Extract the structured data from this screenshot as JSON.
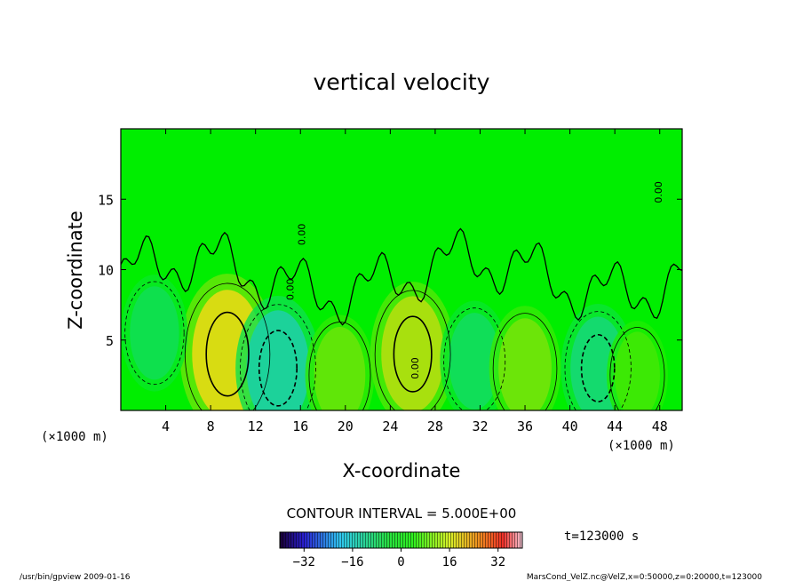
{
  "chart_data": {
    "type": "heatmap",
    "title": "vertical velocity",
    "xlabel": "X-coordinate",
    "ylabel": "Z-coordinate",
    "x_unit_left": "(×1000 m)",
    "x_unit_right": "(×1000 m)",
    "xlim": [
      0,
      50
    ],
    "ylim": [
      0,
      20
    ],
    "x_ticks": [
      4,
      8,
      12,
      16,
      20,
      24,
      28,
      32,
      36,
      40,
      44,
      48
    ],
    "y_ticks": [
      5,
      10,
      15
    ],
    "contour_interval_text": "CONTOUR INTERVAL = 5.000E+00",
    "time_text": "t=123000 s",
    "contour_labels": [
      {
        "text": "0.00",
        "x": 15.4,
        "z": 8.6
      },
      {
        "text": "0.00",
        "x": 16.4,
        "z": 12.5
      },
      {
        "text": "0.00",
        "x": 26.5,
        "z": 3.0
      },
      {
        "text": "0.00",
        "x": 48.2,
        "z": 15.5
      }
    ],
    "colorbar": {
      "min": -40,
      "max": 40,
      "ticks": [
        -32,
        -16,
        0,
        16,
        32
      ]
    },
    "cells": [
      {
        "x": 9.5,
        "z": 4.0,
        "value": 18
      },
      {
        "x": 14.0,
        "z": 3.0,
        "value": -14
      },
      {
        "x": 19.5,
        "z": 2.5,
        "value": 8
      },
      {
        "x": 26.0,
        "z": 4.0,
        "value": 14
      },
      {
        "x": 31.5,
        "z": 3.5,
        "value": -8
      },
      {
        "x": 36.0,
        "z": 3.0,
        "value": 9
      },
      {
        "x": 42.5,
        "z": 3.0,
        "value": -10
      },
      {
        "x": 3.0,
        "z": 5.5,
        "value": -7
      },
      {
        "x": 46.0,
        "z": 2.5,
        "value": 5
      }
    ]
  },
  "footer": {
    "left": "/usr/bin/gpview  2009-01-16",
    "right": "MarsCond_VelZ.nc@VelZ,x=0:50000,z=0:20000,t=123000"
  }
}
